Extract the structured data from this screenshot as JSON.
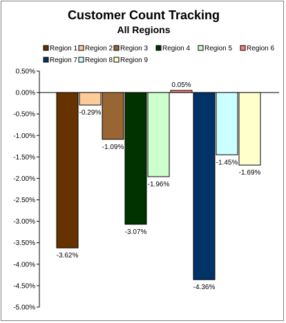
{
  "chart_data": {
    "type": "bar",
    "title": "Customer Count Tracking",
    "subtitle": "All Regions",
    "xlabel": "",
    "ylabel": "",
    "ylim": [
      -5.0,
      0.5
    ],
    "y_ticks": [
      "0.50%",
      "0.00%",
      "-0.50%",
      "-1.00%",
      "-1.50%",
      "-2.00%",
      "-2.50%",
      "-3.00%",
      "-3.50%",
      "-4.00%",
      "-4.50%",
      "-5.00%"
    ],
    "grid": false,
    "legend_position": "top",
    "series": [
      {
        "name": "Region 1",
        "value": -3.62,
        "label": "-3.62%",
        "color": "#663300"
      },
      {
        "name": "Region 2",
        "value": -0.29,
        "label": "-0.29%",
        "color": "#FFCC99"
      },
      {
        "name": "Region 3",
        "value": -1.09,
        "label": "-1.09%",
        "color": "#996633"
      },
      {
        "name": "Region 4",
        "value": -3.07,
        "label": "-3.07%",
        "color": "#003300"
      },
      {
        "name": "Region 5",
        "value": -1.96,
        "label": "-1.96%",
        "color": "#CCFFCC"
      },
      {
        "name": "Region 6",
        "value": 0.05,
        "label": "0.05%",
        "color": "#FF8080"
      },
      {
        "name": "Region 7",
        "value": -4.36,
        "label": "-4.36%",
        "color": "#003366"
      },
      {
        "name": "Region 8",
        "value": -1.45,
        "label": "-1.45%",
        "color": "#CCFFFF"
      },
      {
        "name": "Region 9",
        "value": -1.69,
        "label": "-1.69%",
        "color": "#FFFFCC"
      }
    ]
  }
}
